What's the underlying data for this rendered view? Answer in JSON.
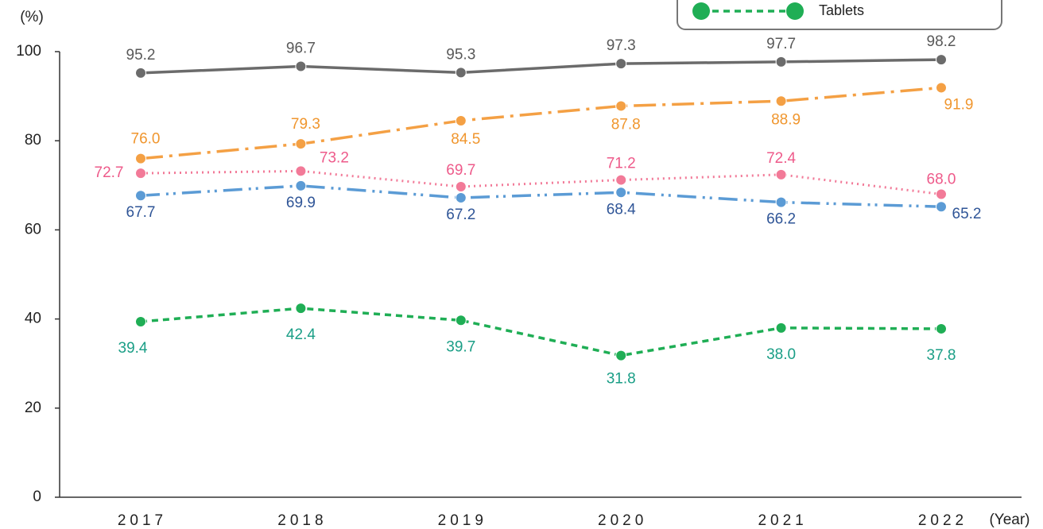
{
  "chart_data": {
    "type": "line",
    "y_label": "(%)",
    "x_label": "(Year)",
    "categories": [
      "2017",
      "2018",
      "2019",
      "2020",
      "2021",
      "2022"
    ],
    "ylim": [
      0,
      100
    ],
    "yticks": [
      0,
      20,
      40,
      60,
      80,
      100
    ],
    "grid": false,
    "legend": "top-right",
    "series": [
      {
        "color": "#6b6b6b",
        "label_color": "#595959",
        "values": [
          95.2,
          96.7,
          95.3,
          97.3,
          97.7,
          98.2
        ],
        "value_labels": [
          "95.2",
          "96.7",
          "95.3",
          "97.3",
          "97.7",
          "98.2"
        ]
      },
      {
        "color": "#f4a044",
        "label_color": "#f0962e",
        "values": [
          76.0,
          79.3,
          84.5,
          87.8,
          88.9,
          91.9
        ],
        "value_labels": [
          "76.0",
          "79.3",
          "84.5",
          "87.8",
          "88.9",
          "91.9"
        ]
      },
      {
        "color": "#f27a98",
        "label_color": "#ee5a8a",
        "values": [
          72.7,
          73.2,
          69.7,
          71.2,
          72.4,
          68.0
        ],
        "value_labels": [
          "72.7",
          "73.2",
          "69.7",
          "71.2",
          "72.4",
          "68.0"
        ]
      },
      {
        "color": "#5b9bd5",
        "label_color": "#2f5597",
        "values": [
          67.7,
          69.9,
          67.2,
          68.4,
          66.2,
          65.2
        ],
        "value_labels": [
          "67.7",
          "69.9",
          "67.2",
          "68.4",
          "66.2",
          "65.2"
        ]
      },
      {
        "name": "Tablets",
        "color": "#1fae55",
        "label_color": "#1a9e86",
        "values": [
          39.4,
          42.4,
          39.7,
          31.8,
          38.0,
          37.8
        ],
        "value_labels": [
          "39.4",
          "42.4",
          "39.7",
          "31.8",
          "38.0",
          "37.8"
        ]
      }
    ]
  }
}
